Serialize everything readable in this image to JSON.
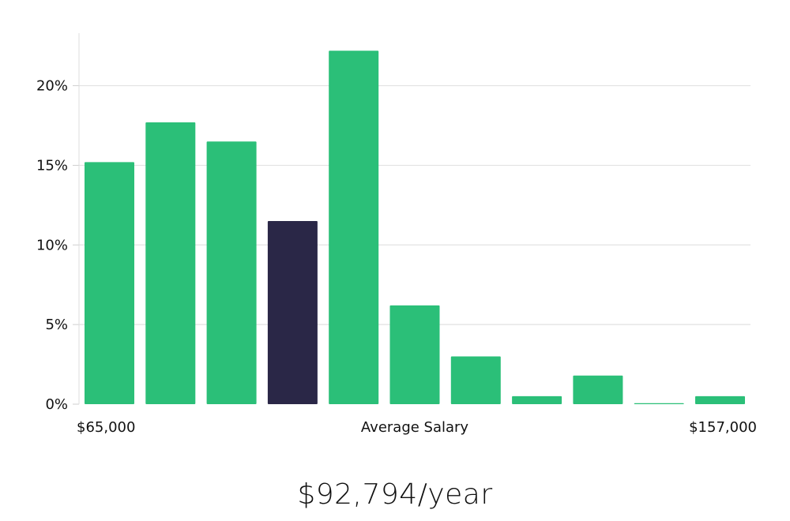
{
  "chart_data": {
    "type": "bar",
    "title": "",
    "xlabel": "Average Salary",
    "x_min_label": "$65,000",
    "x_max_label": "$157,000",
    "ylabel": "",
    "ylim": [
      0,
      23.3
    ],
    "yticks": [
      0,
      5,
      10,
      15,
      20
    ],
    "ytick_labels": [
      "0%",
      "5%",
      "10%",
      "15%",
      "20%"
    ],
    "values": [
      15.2,
      17.7,
      16.5,
      11.5,
      22.2,
      6.2,
      3.0,
      0.5,
      1.8,
      0.05,
      0.5
    ],
    "highlight_index": 3,
    "grid": true,
    "colors": {
      "bar": "#2bbf78",
      "highlight": "#2a2747",
      "grid": "#e2e2e2",
      "axis": "#dddddd"
    }
  },
  "caption": "$92,794/year"
}
